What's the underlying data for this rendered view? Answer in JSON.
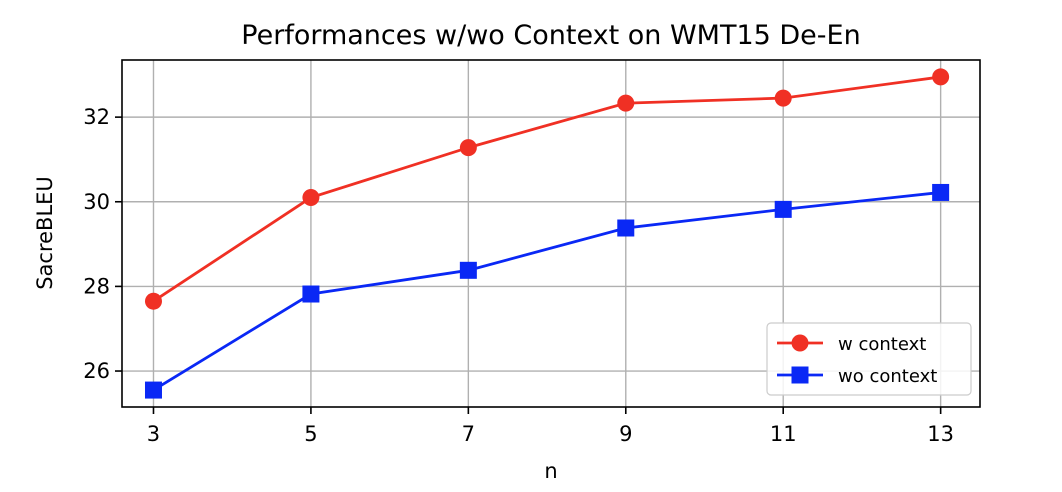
{
  "chart_data": {
    "type": "line",
    "title": "Performances w/wo Context on WMT15 De-En",
    "xlabel": "n",
    "ylabel": "SacreBLEU",
    "x": [
      3,
      5,
      7,
      9,
      11,
      13
    ],
    "xticks": [
      "3",
      "5",
      "7",
      "9",
      "11",
      "13"
    ],
    "xlim": [
      2.6,
      13.5
    ],
    "yticks": [
      "26",
      "28",
      "30",
      "32"
    ],
    "ylim": [
      25.15,
      33.35
    ],
    "grid": true,
    "legend_position": "lower-right",
    "series": [
      {
        "name": "w context",
        "marker": "circle",
        "color": "#f03024",
        "values": [
          27.65,
          30.1,
          31.28,
          32.33,
          32.45,
          32.95
        ]
      },
      {
        "name": "wo context",
        "marker": "square",
        "color": "#0a28f5",
        "values": [
          25.55,
          27.82,
          28.38,
          29.38,
          29.82,
          30.22
        ]
      }
    ]
  }
}
